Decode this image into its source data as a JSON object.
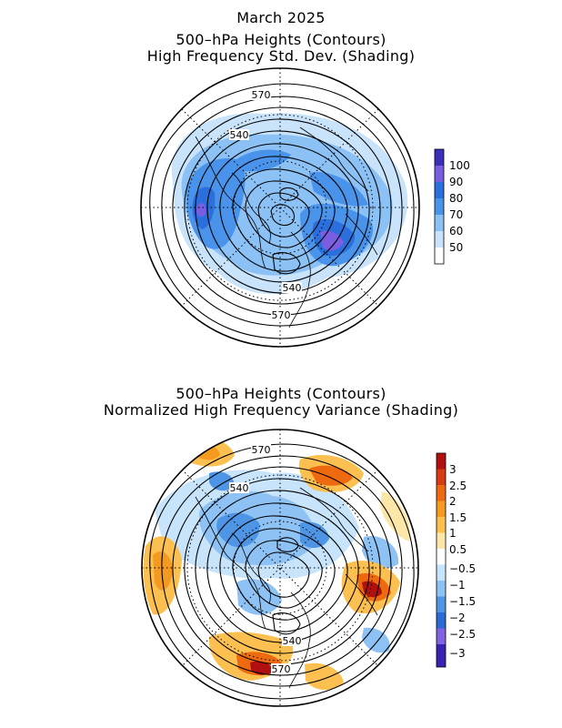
{
  "top_panel": {
    "title_line1": "March 2025",
    "title_line2": "500–hPa Heights (Contours)",
    "title_line3": "High Frequency Std. Dev. (Shading)",
    "contour_labels": [
      "570",
      "540",
      "540",
      "570"
    ],
    "colorbar": {
      "ticks": [
        "100",
        "90",
        "80",
        "70",
        "60",
        "50"
      ],
      "colors": [
        "#3b2fb8",
        "#7a5de0",
        "#2a6fdc",
        "#4a93ea",
        "#8cc1f5",
        "#c9e3fb",
        "#ffffff"
      ]
    }
  },
  "bottom_panel": {
    "title_line1": "500–hPa Heights (Contours)",
    "title_line2": "Normalized High Frequency Variance (Shading)",
    "contour_labels": [
      "570",
      "540",
      "540",
      "570"
    ],
    "colorbar": {
      "ticks": [
        "3",
        "2.5",
        "2",
        "1.5",
        "1",
        "0.5",
        "−0.5",
        "−1",
        "−1.5",
        "−2",
        "−2.5",
        "−3"
      ],
      "colors": [
        "#b01010",
        "#d83a12",
        "#ee6a10",
        "#f59a20",
        "#fbc050",
        "#fde7a8",
        "#ffffff",
        "#c8e4fb",
        "#8ec2f4",
        "#4f95e6",
        "#2a6bd6",
        "#7f63e0",
        "#3a22b0"
      ]
    }
  }
}
